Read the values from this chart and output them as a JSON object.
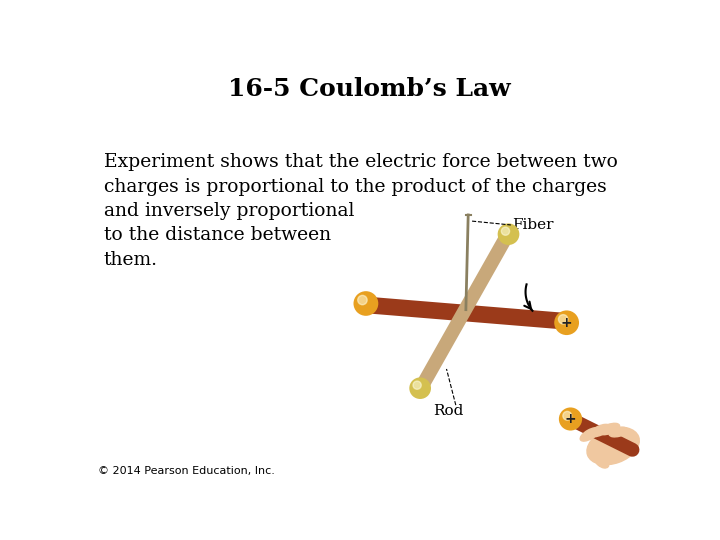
{
  "title": "16-5 Coulomb’s Law",
  "body_text": "Experiment shows that the electric force between two\ncharges is proportional to the product of the charges\nand inversely proportional\nto the distance between\nthem.",
  "copyright": "© 2014 Pearson Education, Inc.",
  "background_color": "#ffffff",
  "title_fontsize": 18,
  "body_fontsize": 13.5,
  "copyright_fontsize": 8,
  "title_color": "#000000",
  "body_color": "#000000",
  "label_fiber": "Fiber",
  "label_rod": "Rod",
  "rod1_color": "#9B3A1A",
  "rod2_color": "#C8A87A",
  "ball_orange": "#E8A020",
  "ball_yellow": "#D4C050",
  "fiber_color": "#8A8060",
  "hand_color": "#F0C8A0"
}
